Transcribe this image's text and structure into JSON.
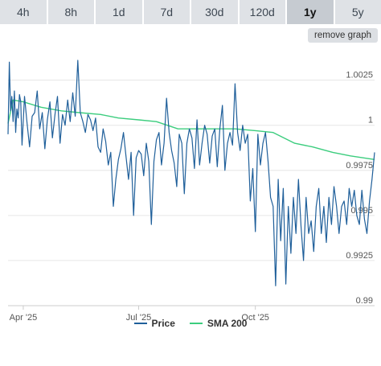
{
  "tabs": [
    "4h",
    "8h",
    "1d",
    "7d",
    "30d",
    "120d",
    "1y",
    "5y"
  ],
  "active_tab": "1y",
  "remove_graph_label": "remove graph",
  "colors": {
    "price": "#1f5f9a",
    "sma": "#3ccd7e",
    "grid": "#e6e6e6",
    "active_tab_bg": "#c6cbd1"
  },
  "chart_data": {
    "type": "line",
    "xlabel": "",
    "ylabel": "",
    "x_tick_labels": [
      "Apr '25",
      "Jul '25",
      "Oct '25"
    ],
    "x_tick_dates": [
      "2025-04-01",
      "2025-07-01",
      "2025-10-01"
    ],
    "x_range": [
      "2025-03-20",
      "2026-01-03"
    ],
    "y_ticks": [
      0.99,
      0.9925,
      0.995,
      0.9975,
      1,
      1.0025
    ],
    "y_tick_labels": [
      "0.99",
      "0.9925",
      "0.995",
      "0.9975",
      "1",
      "1.0025"
    ],
    "ylim": [
      0.99,
      1.004
    ],
    "grid": true,
    "legend": "bottom",
    "series": [
      {
        "name": "Price",
        "color": "#1f5f9a",
        "points": [
          [
            "2025-03-20",
            0.9995
          ],
          [
            "2025-03-21",
            1.0035
          ],
          [
            "2025-03-22",
            1.0008
          ],
          [
            "2025-03-23",
            1.0016
          ],
          [
            "2025-03-24",
            1.0002
          ],
          [
            "2025-03-25",
            1.0019
          ],
          [
            "2025-03-26",
            0.9996
          ],
          [
            "2025-03-27",
            1.0009
          ],
          [
            "2025-03-28",
            1.0004
          ],
          [
            "2025-03-29",
            1.0017
          ],
          [
            "2025-03-30",
            1.0013
          ],
          [
            "2025-03-31",
            0.9989
          ],
          [
            "2025-04-02",
            1.0016
          ],
          [
            "2025-04-04",
            1.0001
          ],
          [
            "2025-04-06",
            0.9988
          ],
          [
            "2025-04-08",
            1.0005
          ],
          [
            "2025-04-10",
            1.0007
          ],
          [
            "2025-04-12",
            1.0019
          ],
          [
            "2025-04-14",
            0.9998
          ],
          [
            "2025-04-16",
            1.0007
          ],
          [
            "2025-04-18",
            0.9987
          ],
          [
            "2025-04-20",
            1.0003
          ],
          [
            "2025-04-22",
            1.0013
          ],
          [
            "2025-04-24",
            0.9993
          ],
          [
            "2025-04-26",
            1.0006
          ],
          [
            "2025-04-28",
            1.0016
          ],
          [
            "2025-04-30",
            0.999
          ],
          [
            "2025-05-02",
            1.0006
          ],
          [
            "2025-05-04",
            1.0
          ],
          [
            "2025-05-06",
            1.0014
          ],
          [
            "2025-05-08",
            1.0002
          ],
          [
            "2025-05-10",
            1.0018
          ],
          [
            "2025-05-12",
            1.0005
          ],
          [
            "2025-05-14",
            1.0036
          ],
          [
            "2025-05-16",
            1.0007
          ],
          [
            "2025-05-18",
            1.0002
          ],
          [
            "2025-05-20",
            0.9996
          ],
          [
            "2025-05-22",
            1.0006
          ],
          [
            "2025-05-24",
            1.0003
          ],
          [
            "2025-05-26",
            0.9997
          ],
          [
            "2025-05-28",
            1.0004
          ],
          [
            "2025-05-30",
            0.9988
          ],
          [
            "2025-06-01",
            0.9985
          ],
          [
            "2025-06-03",
            0.9998
          ],
          [
            "2025-06-05",
            0.9991
          ],
          [
            "2025-06-07",
            0.9978
          ],
          [
            "2025-06-09",
            0.9985
          ],
          [
            "2025-06-11",
            0.9955
          ],
          [
            "2025-06-13",
            0.997
          ],
          [
            "2025-06-15",
            0.9981
          ],
          [
            "2025-06-17",
            0.9987
          ],
          [
            "2025-06-19",
            0.9996
          ],
          [
            "2025-06-21",
            0.9983
          ],
          [
            "2025-06-23",
            0.997
          ],
          [
            "2025-06-25",
            0.9985
          ],
          [
            "2025-06-27",
            0.995
          ],
          [
            "2025-06-29",
            0.9982
          ],
          [
            "2025-07-01",
            0.9986
          ],
          [
            "2025-07-03",
            0.9984
          ],
          [
            "2025-07-05",
            0.9972
          ],
          [
            "2025-07-07",
            0.999
          ],
          [
            "2025-07-09",
            0.998
          ],
          [
            "2025-07-11",
            0.9945
          ],
          [
            "2025-07-13",
            0.998
          ],
          [
            "2025-07-15",
            0.9992
          ],
          [
            "2025-07-17",
            0.9996
          ],
          [
            "2025-07-19",
            0.9978
          ],
          [
            "2025-07-21",
            0.999
          ],
          [
            "2025-07-23",
            1.0015
          ],
          [
            "2025-07-25",
            0.9996
          ],
          [
            "2025-07-27",
            0.9986
          ],
          [
            "2025-07-29",
            0.9979
          ],
          [
            "2025-07-31",
            0.9966
          ],
          [
            "2025-08-02",
            0.9995
          ],
          [
            "2025-08-04",
            0.999
          ],
          [
            "2025-08-06",
            0.9962
          ],
          [
            "2025-08-08",
            0.999
          ],
          [
            "2025-08-10",
            0.9998
          ],
          [
            "2025-08-12",
            0.9993
          ],
          [
            "2025-08-14",
            0.9976
          ],
          [
            "2025-08-16",
            1.0003
          ],
          [
            "2025-08-18",
            0.9978
          ],
          [
            "2025-08-20",
            0.999
          ],
          [
            "2025-08-22",
            1.0
          ],
          [
            "2025-08-24",
            0.9995
          ],
          [
            "2025-08-26",
            0.9979
          ],
          [
            "2025-08-28",
            0.9994
          ],
          [
            "2025-08-30",
            0.9998
          ],
          [
            "2025-09-01",
            0.9977
          ],
          [
            "2025-09-03",
            0.9998
          ],
          [
            "2025-09-05",
            1.0011
          ],
          [
            "2025-09-07",
            0.9975
          ],
          [
            "2025-09-09",
            0.999
          ],
          [
            "2025-09-11",
            0.9996
          ],
          [
            "2025-09-13",
            0.9989
          ],
          [
            "2025-09-15",
            1.0023
          ],
          [
            "2025-09-17",
            0.9996
          ],
          [
            "2025-09-19",
            0.9986
          ],
          [
            "2025-09-21",
            1.0
          ],
          [
            "2025-09-23",
            0.999
          ],
          [
            "2025-09-25",
            0.9995
          ],
          [
            "2025-09-27",
            0.9958
          ],
          [
            "2025-09-29",
            0.9976
          ],
          [
            "2025-10-01",
            0.9941
          ],
          [
            "2025-10-03",
            0.9995
          ],
          [
            "2025-10-05",
            0.9978
          ],
          [
            "2025-10-07",
            0.999
          ],
          [
            "2025-10-09",
            0.9996
          ],
          [
            "2025-10-11",
            0.998
          ],
          [
            "2025-10-13",
            0.996
          ],
          [
            "2025-10-15",
            0.9955
          ],
          [
            "2025-10-17",
            0.9911
          ],
          [
            "2025-10-19",
            0.997
          ],
          [
            "2025-10-21",
            0.9936
          ],
          [
            "2025-10-23",
            0.9965
          ],
          [
            "2025-10-25",
            0.9912
          ],
          [
            "2025-10-27",
            0.9955
          ],
          [
            "2025-10-29",
            0.9929
          ],
          [
            "2025-10-31",
            0.996
          ],
          [
            "2025-11-02",
            0.994
          ],
          [
            "2025-11-04",
            0.997
          ],
          [
            "2025-11-06",
            0.9944
          ],
          [
            "2025-11-08",
            0.9925
          ],
          [
            "2025-11-10",
            0.996
          ],
          [
            "2025-11-12",
            0.994
          ],
          [
            "2025-11-14",
            0.9947
          ],
          [
            "2025-11-16",
            0.993
          ],
          [
            "2025-11-18",
            0.9955
          ],
          [
            "2025-11-20",
            0.9965
          ],
          [
            "2025-11-22",
            0.994
          ],
          [
            "2025-11-24",
            0.9955
          ],
          [
            "2025-11-26",
            0.9935
          ],
          [
            "2025-11-28",
            0.996
          ],
          [
            "2025-11-30",
            0.9945
          ],
          [
            "2025-12-02",
            0.9966
          ],
          [
            "2025-12-04",
            0.9955
          ],
          [
            "2025-12-06",
            0.994
          ],
          [
            "2025-12-08",
            0.9955
          ],
          [
            "2025-12-10",
            0.9958
          ],
          [
            "2025-12-12",
            0.9945
          ],
          [
            "2025-12-14",
            0.9965
          ],
          [
            "2025-12-16",
            0.9955
          ],
          [
            "2025-12-18",
            0.9964
          ],
          [
            "2025-12-20",
            0.995
          ],
          [
            "2025-12-22",
            0.9945
          ],
          [
            "2025-12-24",
            0.9964
          ],
          [
            "2025-12-26",
            0.9948
          ],
          [
            "2025-12-28",
            0.994
          ],
          [
            "2025-12-30",
            0.9958
          ],
          [
            "2026-01-01",
            0.997
          ],
          [
            "2026-01-03",
            0.9985
          ]
        ]
      },
      {
        "name": "SMA 200",
        "color": "#3ccd7e",
        "points": [
          [
            "2025-03-20",
            1.0001
          ],
          [
            "2025-03-24",
            1.0014
          ],
          [
            "2025-04-01",
            1.0013
          ],
          [
            "2025-04-15",
            1.001
          ],
          [
            "2025-05-01",
            1.0008
          ],
          [
            "2025-05-15",
            1.0007
          ],
          [
            "2025-06-01",
            1.0006
          ],
          [
            "2025-06-15",
            1.0004
          ],
          [
            "2025-07-01",
            1.0003
          ],
          [
            "2025-07-15",
            1.0002
          ],
          [
            "2025-08-01",
            0.9998
          ],
          [
            "2025-08-15",
            0.9998
          ],
          [
            "2025-09-01",
            0.9998
          ],
          [
            "2025-09-15",
            0.9998
          ],
          [
            "2025-10-01",
            0.9997
          ],
          [
            "2025-10-15",
            0.9996
          ],
          [
            "2025-11-01",
            0.999
          ],
          [
            "2025-11-15",
            0.9988
          ],
          [
            "2025-12-01",
            0.9985
          ],
          [
            "2025-12-15",
            0.9983
          ],
          [
            "2026-01-03",
            0.9981
          ]
        ]
      }
    ]
  }
}
